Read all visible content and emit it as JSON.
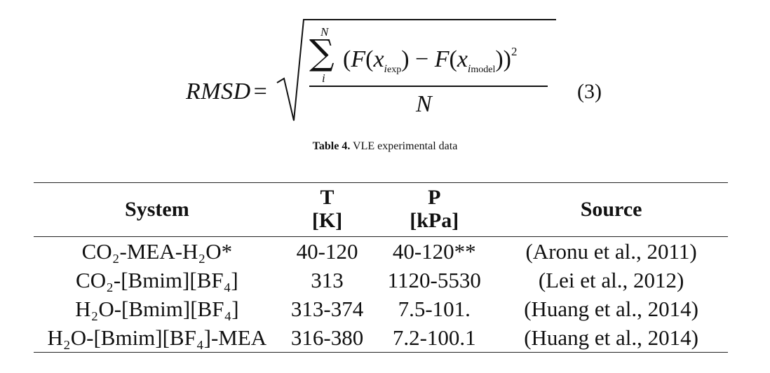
{
  "equation": {
    "lhs": "RMSD",
    "equals": "=",
    "sum_upper": "N",
    "sum_lower": "i",
    "numerator": {
      "open": "(",
      "f1": "F",
      "x1": "x",
      "sub1_i": "i",
      "sub1_rest": "exp",
      "minus": ") − ",
      "f2": "F",
      "x2": "x",
      "sub2_i": "i",
      "sub2_rest": "model",
      "close": "))",
      "exponent": "2"
    },
    "denominator": "N",
    "number": "(3)"
  },
  "table": {
    "caption_label": "Table 4.",
    "caption_text": " VLE experimental data",
    "headers": {
      "system": "System",
      "t_line1": "T",
      "t_line2": "[K]",
      "p_line1": "P",
      "p_line2": "[kPa]",
      "source": "Source"
    },
    "rows": [
      {
        "system": "CO₂-MEA-H₂O*",
        "t": "40-120",
        "p": "40-120**",
        "source": "(Aronu et al., 2011)"
      },
      {
        "system": "CO₂-[Bmim][BF₄]",
        "t": "313",
        "p": "1120-5530",
        "source": "(Lei et al., 2012)"
      },
      {
        "system": "H₂O-[Bmim][BF₄]",
        "t": "313-374",
        "p": "7.5-101.",
        "source": "(Huang et al., 2014)"
      },
      {
        "system": "H₂O-[Bmim][BF₄]-MEA",
        "t": "316-380",
        "p": "7.2-100.1",
        "source": "(Huang et al., 2014)"
      }
    ]
  }
}
